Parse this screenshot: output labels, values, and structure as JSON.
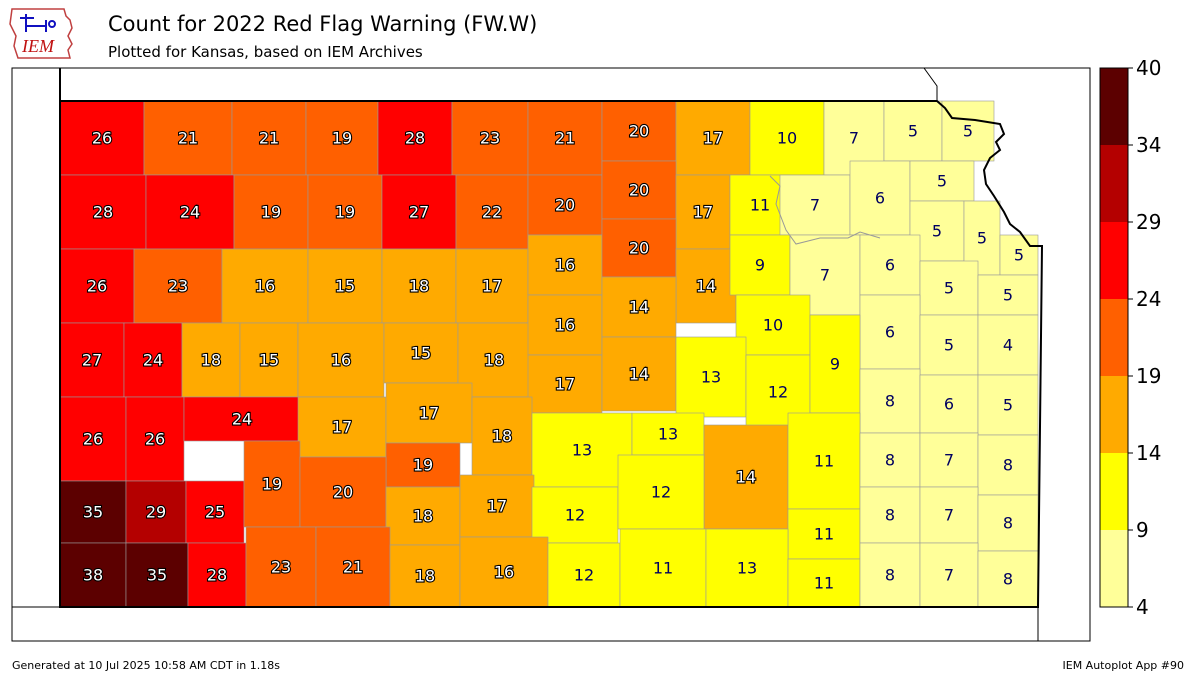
{
  "title": "Count for 2022 Red Flag Warning (FW.W)",
  "subtitle": "Plotted for Kansas, based on IEM Archives",
  "logo_text": "IEM",
  "footer": {
    "generated": "Generated at 10 Jul 2025 10:58 AM CDT in 1.18s",
    "app": "IEM Autoplot App #90"
  },
  "colorbar": {
    "ticks": [
      "4",
      "9",
      "14",
      "19",
      "24",
      "29",
      "34",
      "40"
    ],
    "colors": [
      "#ffff99",
      "#ffff00",
      "#ffaa00",
      "#ff6000",
      "#ff0000",
      "#b40000",
      "#5c0000"
    ]
  },
  "map": {
    "region": "Kansas",
    "layer": "Red Flag Warning count by county",
    "counts": [
      {
        "value": "26"
      },
      {
        "value": "21"
      },
      {
        "value": "21"
      },
      {
        "value": "19"
      },
      {
        "value": "28"
      },
      {
        "value": "23"
      },
      {
        "value": "21"
      },
      {
        "value": "20"
      },
      {
        "value": "17"
      },
      {
        "value": "10"
      },
      {
        "value": "7"
      },
      {
        "value": "5"
      },
      {
        "value": "5"
      },
      {
        "value": "28"
      },
      {
        "value": "24"
      },
      {
        "value": "19"
      },
      {
        "value": "19"
      },
      {
        "value": "27"
      },
      {
        "value": "22"
      },
      {
        "value": "20"
      },
      {
        "value": "20"
      },
      {
        "value": "17"
      },
      {
        "value": "11"
      },
      {
        "value": "7"
      },
      {
        "value": "6"
      },
      {
        "value": "5"
      },
      {
        "value": "5"
      },
      {
        "value": "5"
      },
      {
        "value": "5"
      },
      {
        "value": "26"
      },
      {
        "value": "23"
      },
      {
        "value": "16"
      },
      {
        "value": "15"
      },
      {
        "value": "18"
      },
      {
        "value": "17"
      },
      {
        "value": "16"
      },
      {
        "value": "20"
      },
      {
        "value": "14"
      },
      {
        "value": "9"
      },
      {
        "value": "7"
      },
      {
        "value": "6"
      },
      {
        "value": "5"
      },
      {
        "value": "5"
      },
      {
        "value": "27"
      },
      {
        "value": "24"
      },
      {
        "value": "18"
      },
      {
        "value": "15"
      },
      {
        "value": "16"
      },
      {
        "value": "15"
      },
      {
        "value": "18"
      },
      {
        "value": "16"
      },
      {
        "value": "14"
      },
      {
        "value": "10"
      },
      {
        "value": "6"
      },
      {
        "value": "5"
      },
      {
        "value": "4"
      },
      {
        "value": "17"
      },
      {
        "value": "14"
      },
      {
        "value": "13"
      },
      {
        "value": "12"
      },
      {
        "value": "9"
      },
      {
        "value": "26"
      },
      {
        "value": "26"
      },
      {
        "value": "24"
      },
      {
        "value": "17"
      },
      {
        "value": "17"
      },
      {
        "value": "18"
      },
      {
        "value": "13"
      },
      {
        "value": "13"
      },
      {
        "value": "8"
      },
      {
        "value": "6"
      },
      {
        "value": "5"
      },
      {
        "value": "19"
      },
      {
        "value": "14"
      },
      {
        "value": "11"
      },
      {
        "value": "8"
      },
      {
        "value": "7"
      },
      {
        "value": "8"
      },
      {
        "value": "35"
      },
      {
        "value": "29"
      },
      {
        "value": "25"
      },
      {
        "value": "19"
      },
      {
        "value": "20"
      },
      {
        "value": "18"
      },
      {
        "value": "17"
      },
      {
        "value": "12"
      },
      {
        "value": "12"
      },
      {
        "value": "11"
      },
      {
        "value": "8"
      },
      {
        "value": "7"
      },
      {
        "value": "8"
      },
      {
        "value": "38"
      },
      {
        "value": "35"
      },
      {
        "value": "28"
      },
      {
        "value": "23"
      },
      {
        "value": "21"
      },
      {
        "value": "18"
      },
      {
        "value": "16"
      },
      {
        "value": "12"
      },
      {
        "value": "11"
      },
      {
        "value": "13"
      },
      {
        "value": "11"
      },
      {
        "value": "8"
      },
      {
        "value": "7"
      },
      {
        "value": "8"
      }
    ]
  }
}
